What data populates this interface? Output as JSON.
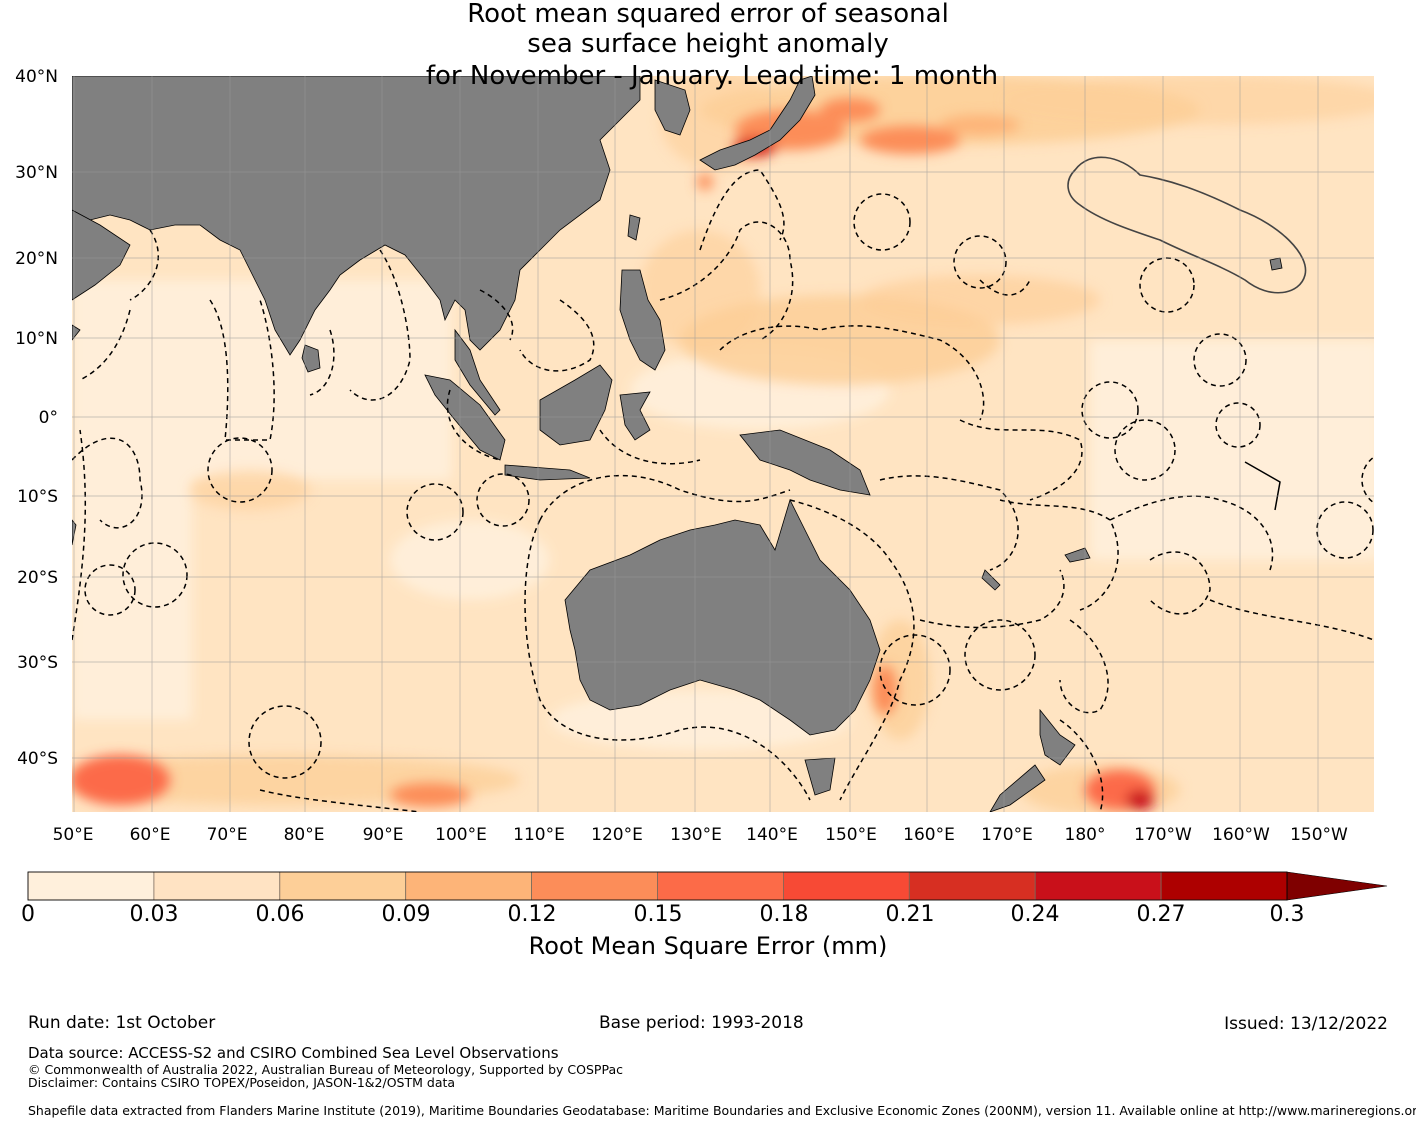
{
  "title": {
    "line1": "Root mean squared error of seasonal",
    "line2": "sea surface height anomaly",
    "line3": "for November - January. Lead time: 1 month"
  },
  "map": {
    "lon_labels": [
      "50°E",
      "60°E",
      "70°E",
      "80°E",
      "90°E",
      "100°E",
      "110°E",
      "120°E",
      "130°E",
      "140°E",
      "150°E",
      "160°E",
      "170°E",
      "180°",
      "170°W",
      "160°W",
      "150°W"
    ],
    "lat_labels": [
      "40°N",
      "30°N",
      "20°N",
      "10°N",
      "0°",
      "10°S",
      "20°S",
      "30°S",
      "40°S"
    ],
    "land_color": "#808080",
    "ocean_base_color": "#ffe4c2"
  },
  "colorbar": {
    "ticks": [
      "0",
      "0.03",
      "0.06",
      "0.09",
      "0.12",
      "0.15",
      "0.18",
      "0.21",
      "0.24",
      "0.27",
      "0.3"
    ],
    "colors": [
      "#fff0dc",
      "#ffe3c3",
      "#fdcf98",
      "#fdb478",
      "#fc8d59",
      "#fc6b48",
      "#f74a35",
      "#d72f22",
      "#c9101a",
      "#ad0000",
      "#7f0000"
    ],
    "label": "Root Mean Square Error (mm)"
  },
  "footer": {
    "run_date": "Run date: 1st October",
    "base_period": "Base period: 1993-2018",
    "issued": "Issued: 13/12/2022",
    "data_source": "Data source: ACCESS-S2 and CSIRO Combined Sea Level Observations",
    "copyright": "© Commonwealth of Australia 2022, Australian Bureau of Meteorology, Supported by COSPPac",
    "disclaimer": "Disclaimer: Contains CSIRO TOPEX/Poseidon, JASON-1&2/OSTM data",
    "shapefile": "Shapefile data extracted from Flanders Marine Institute (2019), Maritime Boundaries Geodatabase: Maritime Boundaries and Exclusive Economic Zones (200NM), version 11. Available online at http://www.marineregions.org/."
  }
}
